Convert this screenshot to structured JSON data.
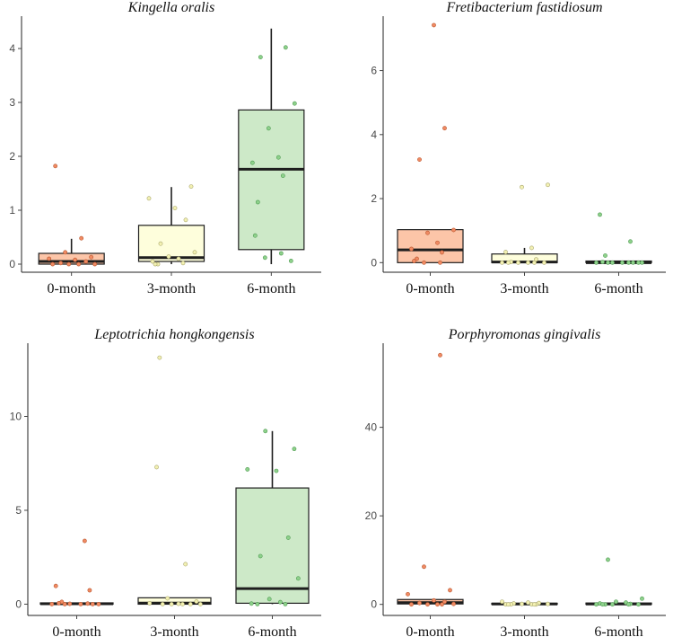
{
  "chart_data": [
    {
      "type": "box",
      "title": "Kingella oralis",
      "categories": [
        "0-month",
        "3-month",
        "6-month"
      ],
      "yticks": [
        0,
        1,
        2,
        3,
        4
      ],
      "ylim": [
        -0.15,
        4.6
      ],
      "colors": {
        "fill": [
          "#fcc5a8",
          "#fefedc",
          "#cde9c8"
        ],
        "point_fill": [
          "#f08a63",
          "#f3f1b3",
          "#8ed18b"
        ],
        "point_stroke": [
          "#b8572f",
          "#a8a56c",
          "#4f9a52"
        ]
      },
      "boxes": [
        {
          "q1": 0.0,
          "median": 0.05,
          "q3": 0.2,
          "whisker_low": 0.0,
          "whisker_high": 0.47
        },
        {
          "q1": 0.05,
          "median": 0.12,
          "q3": 0.72,
          "whisker_low": 0.0,
          "whisker_high": 1.43
        },
        {
          "q1": 0.27,
          "median": 1.76,
          "q3": 2.86,
          "whisker_low": 0.0,
          "whisker_high": 4.37
        }
      ],
      "points": [
        [
          1.82,
          0.48,
          0.22,
          0.13,
          0.1,
          0.08,
          0.05,
          0.02,
          0.0,
          0.0,
          0.0,
          0.0
        ],
        [
          1.44,
          1.22,
          1.04,
          0.82,
          0.38,
          0.22,
          0.14,
          0.1,
          0.05,
          0.02,
          0.0,
          0.0
        ],
        [
          4.02,
          3.84,
          2.98,
          2.52,
          1.98,
          1.88,
          1.64,
          1.15,
          0.53,
          0.2,
          0.12,
          0.06
        ]
      ]
    },
    {
      "type": "box",
      "title": "Fretibacterium fastidiosum",
      "categories": [
        "0-month",
        "3-month",
        "6-month"
      ],
      "yticks": [
        0,
        2,
        4,
        6
      ],
      "ylim": [
        -0.3,
        7.7
      ],
      "colors": {
        "fill": [
          "#fcc5a8",
          "#fefedc",
          "#cde9c8"
        ],
        "point_fill": [
          "#f08a63",
          "#f3f1b3",
          "#8ed18b"
        ],
        "point_stroke": [
          "#b8572f",
          "#a8a56c",
          "#4f9a52"
        ]
      },
      "boxes": [
        {
          "q1": 0.0,
          "median": 0.4,
          "q3": 1.03,
          "whisker_low": 0.0,
          "whisker_high": 1.03
        },
        {
          "q1": 0.0,
          "median": 0.02,
          "q3": 0.27,
          "whisker_low": 0.0,
          "whisker_high": 0.46
        },
        {
          "q1": 0.0,
          "median": 0.0,
          "q3": 0.05,
          "whisker_low": 0.0,
          "whisker_high": 0.05
        }
      ],
      "points": [
        [
          7.42,
          4.2,
          3.22,
          1.02,
          0.93,
          0.62,
          0.43,
          0.32,
          0.12,
          0.05,
          0.0,
          0.0
        ],
        [
          2.43,
          2.36,
          0.46,
          0.33,
          0.1,
          0.02,
          0.0,
          0.0,
          0.0,
          0.0,
          0.0,
          0.0
        ],
        [
          1.5,
          0.66,
          0.22,
          0.02,
          0.0,
          0.0,
          0.0,
          0.0,
          0.0,
          0.0,
          0.0,
          0.0
        ]
      ]
    },
    {
      "type": "box",
      "title": "Leptotrichia hongkongensis",
      "categories": [
        "0-month",
        "3-month",
        "6-month"
      ],
      "yticks": [
        0,
        5,
        10
      ],
      "ylim": [
        -0.6,
        13.9
      ],
      "colors": {
        "fill": [
          "#fcc5a8",
          "#fefedc",
          "#cde9c8"
        ],
        "point_fill": [
          "#f08a63",
          "#f3f1b3",
          "#8ed18b"
        ],
        "point_stroke": [
          "#b8572f",
          "#a8a56c",
          "#4f9a52"
        ]
      },
      "boxes": [
        {
          "q1": 0.0,
          "median": 0.02,
          "q3": 0.07,
          "whisker_low": 0.0,
          "whisker_high": 0.07
        },
        {
          "q1": 0.0,
          "median": 0.06,
          "q3": 0.34,
          "whisker_low": 0.0,
          "whisker_high": 0.34
        },
        {
          "q1": 0.05,
          "median": 0.83,
          "q3": 6.19,
          "whisker_low": 0.0,
          "whisker_high": 9.22
        }
      ],
      "points": [
        [
          3.37,
          0.97,
          0.74,
          0.12,
          0.05,
          0.03,
          0.02,
          0.0,
          0.0,
          0.0,
          0.0,
          0.0
        ],
        [
          13.13,
          7.3,
          2.13,
          0.31,
          0.14,
          0.05,
          0.02,
          0.0,
          0.0,
          0.0,
          0.0,
          0.0
        ],
        [
          9.22,
          8.27,
          7.18,
          7.1,
          3.54,
          2.56,
          1.37,
          0.27,
          0.11,
          0.03,
          0.0,
          0.0
        ]
      ]
    },
    {
      "type": "box",
      "title": "Porphyromonas gingivalis",
      "categories": [
        "0-month",
        "3-month",
        "6-month"
      ],
      "yticks": [
        0,
        20,
        40
      ],
      "ylim": [
        -2.5,
        59
      ],
      "colors": {
        "fill": [
          "#fcc5a8",
          "#fefedc",
          "#cde9c8"
        ],
        "point_fill": [
          "#f08a63",
          "#f3f1b3",
          "#8ed18b"
        ],
        "point_stroke": [
          "#b8572f",
          "#a8a56c",
          "#4f9a52"
        ]
      },
      "boxes": [
        {
          "q1": 0.1,
          "median": 0.4,
          "q3": 1.1,
          "whisker_low": 0.0,
          "whisker_high": 1.1
        },
        {
          "q1": 0.0,
          "median": 0.1,
          "q3": 0.25,
          "whisker_low": 0.0,
          "whisker_high": 0.25
        },
        {
          "q1": 0.0,
          "median": 0.1,
          "q3": 0.3,
          "whisker_low": 0.0,
          "whisker_high": 0.3
        }
      ],
      "points": [
        [
          56.3,
          8.5,
          3.2,
          2.3,
          0.9,
          0.6,
          0.3,
          0.1,
          0.0,
          0.0,
          0.0,
          0.0
        ],
        [
          0.6,
          0.4,
          0.3,
          0.2,
          0.1,
          0.1,
          0.0,
          0.0,
          0.0,
          0.0,
          0.0,
          0.0
        ],
        [
          10.1,
          1.3,
          0.6,
          0.4,
          0.2,
          0.1,
          0.0,
          0.0,
          0.0,
          0.0,
          0.0,
          0.0
        ]
      ]
    }
  ]
}
